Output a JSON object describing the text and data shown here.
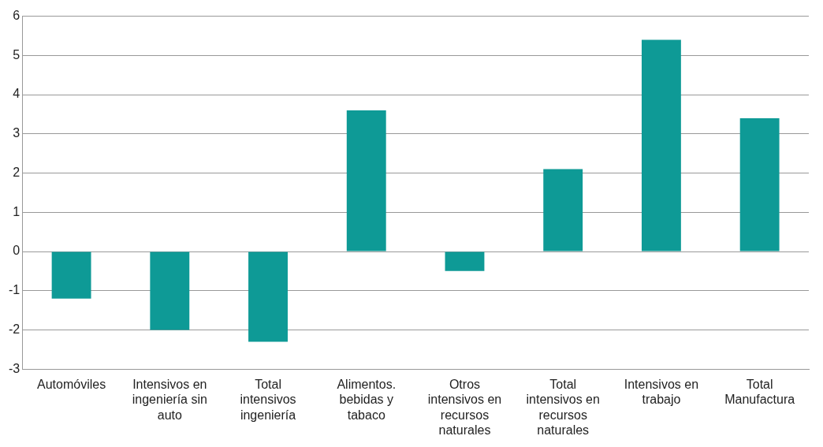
{
  "chart_data": {
    "type": "bar",
    "categories": [
      "Automóviles",
      "Intensivos en ingeniería sin auto",
      "Total intensivos ingeniería",
      "Alimentos. bebidas y tabaco",
      "Otros intensivos en recursos naturales",
      "Total intensivos en recursos naturales",
      "Intensivos en trabajo",
      "Total Manufactura"
    ],
    "values": [
      -1.2,
      -2,
      -2.3,
      3.6,
      -0.5,
      2.1,
      5.4,
      3.4
    ],
    "color": "#0e9a96",
    "ylim": [
      -3,
      6
    ],
    "yticks": [
      -3,
      -2,
      -1,
      0,
      1,
      2,
      3,
      4,
      5,
      6
    ],
    "grid": "y",
    "legend": false
  }
}
